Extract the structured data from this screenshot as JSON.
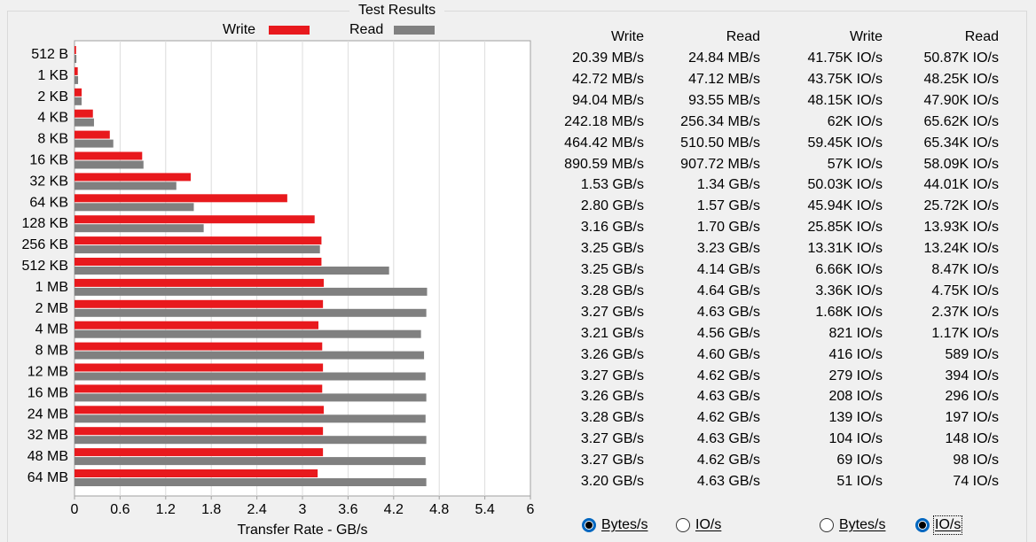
{
  "group_title": "Test Results",
  "legend": {
    "write": {
      "label": "Write",
      "color": "#e8191d"
    },
    "read": {
      "label": "Read",
      "color": "#808080"
    }
  },
  "chart_data": {
    "type": "bar",
    "orientation": "horizontal",
    "categories": [
      "512 B",
      "1 KB",
      "2 KB",
      "4 KB",
      "8 KB",
      "16 KB",
      "32 KB",
      "64 KB",
      "128 KB",
      "256 KB",
      "512 KB",
      "1 MB",
      "2 MB",
      "4 MB",
      "8 MB",
      "12 MB",
      "16 MB",
      "24 MB",
      "32 MB",
      "48 MB",
      "64 MB"
    ],
    "series": [
      {
        "name": "Write",
        "color": "#e8191d",
        "values": [
          0.02039,
          0.04272,
          0.09404,
          0.24218,
          0.46442,
          0.89059,
          1.53,
          2.8,
          3.16,
          3.25,
          3.25,
          3.28,
          3.27,
          3.21,
          3.26,
          3.27,
          3.26,
          3.28,
          3.27,
          3.27,
          3.2
        ]
      },
      {
        "name": "Read",
        "color": "#808080",
        "values": [
          0.02484,
          0.04712,
          0.09355,
          0.25634,
          0.5105,
          0.90772,
          1.34,
          1.57,
          1.7,
          3.23,
          4.14,
          4.64,
          4.63,
          4.56,
          4.6,
          4.62,
          4.63,
          4.62,
          4.63,
          4.62,
          4.63
        ]
      }
    ],
    "xlim": [
      0,
      6
    ],
    "xticks": [
      "0",
      "0.6",
      "1.2",
      "1.8",
      "2.4",
      "3",
      "3.6",
      "4.2",
      "4.8",
      "5.4",
      "6"
    ],
    "xlabel": "Transfer Rate - GB/s",
    "grid": "vertical"
  },
  "table": {
    "headers": [
      "Write",
      "Read",
      "Write",
      "Read"
    ],
    "rows": [
      [
        "20.39 MB/s",
        "24.84 MB/s",
        "41.75K IO/s",
        "50.87K IO/s"
      ],
      [
        "42.72 MB/s",
        "47.12 MB/s",
        "43.75K IO/s",
        "48.25K IO/s"
      ],
      [
        "94.04 MB/s",
        "93.55 MB/s",
        "48.15K IO/s",
        "47.90K IO/s"
      ],
      [
        "242.18 MB/s",
        "256.34 MB/s",
        "62K IO/s",
        "65.62K IO/s"
      ],
      [
        "464.42 MB/s",
        "510.50 MB/s",
        "59.45K IO/s",
        "65.34K IO/s"
      ],
      [
        "890.59 MB/s",
        "907.72 MB/s",
        "57K IO/s",
        "58.09K IO/s"
      ],
      [
        "1.53 GB/s",
        "1.34 GB/s",
        "50.03K IO/s",
        "44.01K IO/s"
      ],
      [
        "2.80 GB/s",
        "1.57 GB/s",
        "45.94K IO/s",
        "25.72K IO/s"
      ],
      [
        "3.16 GB/s",
        "1.70 GB/s",
        "25.85K IO/s",
        "13.93K IO/s"
      ],
      [
        "3.25 GB/s",
        "3.23 GB/s",
        "13.31K IO/s",
        "13.24K IO/s"
      ],
      [
        "3.25 GB/s",
        "4.14 GB/s",
        "6.66K IO/s",
        "8.47K IO/s"
      ],
      [
        "3.28 GB/s",
        "4.64 GB/s",
        "3.36K IO/s",
        "4.75K IO/s"
      ],
      [
        "3.27 GB/s",
        "4.63 GB/s",
        "1.68K IO/s",
        "2.37K IO/s"
      ],
      [
        "3.21 GB/s",
        "4.56 GB/s",
        "821 IO/s",
        "1.17K IO/s"
      ],
      [
        "3.26 GB/s",
        "4.60 GB/s",
        "416 IO/s",
        "589 IO/s"
      ],
      [
        "3.27 GB/s",
        "4.62 GB/s",
        "279 IO/s",
        "394 IO/s"
      ],
      [
        "3.26 GB/s",
        "4.63 GB/s",
        "208 IO/s",
        "296 IO/s"
      ],
      [
        "3.28 GB/s",
        "4.62 GB/s",
        "139 IO/s",
        "197 IO/s"
      ],
      [
        "3.27 GB/s",
        "4.63 GB/s",
        "104 IO/s",
        "148 IO/s"
      ],
      [
        "3.27 GB/s",
        "4.62 GB/s",
        "69 IO/s",
        "98 IO/s"
      ],
      [
        "3.20 GB/s",
        "4.63 GB/s",
        "51 IO/s",
        "74 IO/s"
      ]
    ]
  },
  "radios": {
    "left": {
      "bytes_label": "Bytes/s",
      "io_label": "IO/s",
      "selected": "bytes"
    },
    "right": {
      "bytes_label": "Bytes/s",
      "io_label": "IO/s",
      "selected": "io"
    }
  }
}
